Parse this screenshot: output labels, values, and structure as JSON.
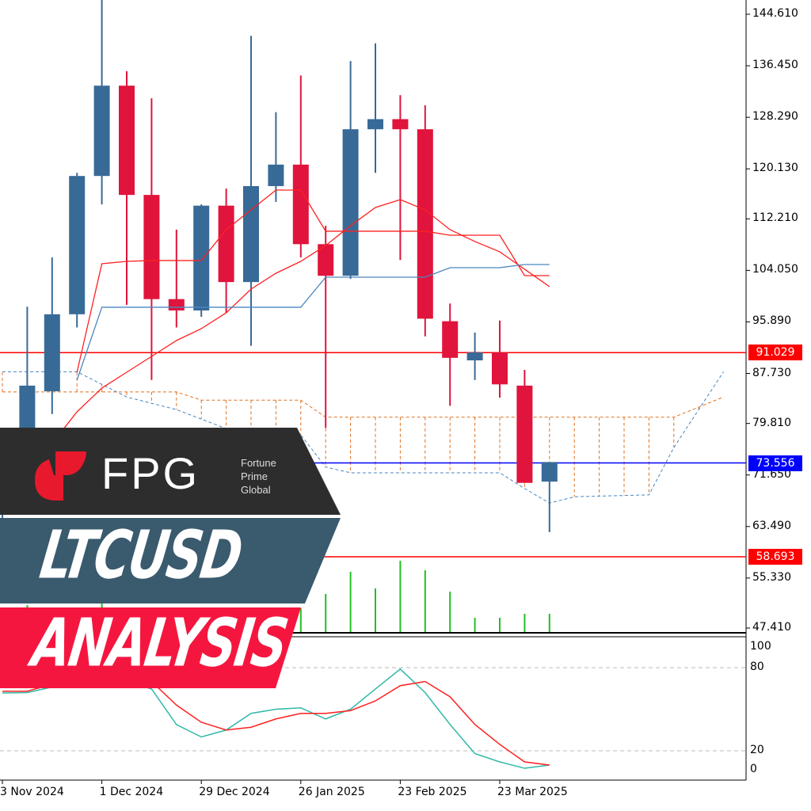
{
  "chart_data": {
    "type": "candlestick",
    "symbol_label": "LTCUSD",
    "y_ticks": [
      "144.610",
      "136.450",
      "128.290",
      "120.130",
      "112.210",
      "104.050",
      "95.890",
      "87.730",
      "79.810",
      "71.650",
      "63.490",
      "55.330",
      "47.410"
    ],
    "ylim": [
      47.41,
      144.61
    ],
    "x_ticks": [
      {
        "index": 0,
        "label": "3 Nov 2024"
      },
      {
        "index": 4,
        "label": "1 Dec 2024"
      },
      {
        "index": 8,
        "label": "29 Dec 2024"
      },
      {
        "index": 12,
        "label": "26 Jan 2025"
      },
      {
        "index": 16,
        "label": "23 Feb 2025"
      },
      {
        "index": 20,
        "label": "23 Mar 2025"
      }
    ],
    "candles": [
      {
        "o": 66.0,
        "h": 76.0,
        "l": 62.0,
        "c": 75.6
      },
      {
        "o": 75.6,
        "h": 98.3,
        "l": 71.6,
        "c": 85.8
      },
      {
        "o": 84.9,
        "h": 106.1,
        "l": 81.3,
        "c": 97.1
      },
      {
        "o": 97.1,
        "h": 119.5,
        "l": 95.0,
        "c": 119.0
      },
      {
        "o": 119.0,
        "h": 147.0,
        "l": 114.5,
        "c": 133.3
      },
      {
        "o": 133.3,
        "h": 135.6,
        "l": 98.6,
        "c": 116.0
      },
      {
        "o": 116.0,
        "h": 131.3,
        "l": 86.7,
        "c": 99.5
      },
      {
        "o": 99.5,
        "h": 110.5,
        "l": 95.0,
        "c": 97.7
      },
      {
        "o": 97.7,
        "h": 114.5,
        "l": 96.7,
        "c": 114.3
      },
      {
        "o": 114.3,
        "h": 117.0,
        "l": 97.3,
        "c": 102.2
      },
      {
        "o": 102.2,
        "h": 141.2,
        "l": 92.1,
        "c": 117.4
      },
      {
        "o": 117.4,
        "h": 129.1,
        "l": 114.9,
        "c": 120.8
      },
      {
        "o": 120.8,
        "h": 134.9,
        "l": 106.1,
        "c": 108.2
      },
      {
        "o": 108.2,
        "h": 111.1,
        "l": 79.1,
        "c": 103.2
      },
      {
        "o": 103.2,
        "h": 137.2,
        "l": 102.7,
        "c": 126.4
      },
      {
        "o": 126.4,
        "h": 140.0,
        "l": 119.5,
        "c": 128.0
      },
      {
        "o": 128.0,
        "h": 131.8,
        "l": 105.7,
        "c": 126.4
      },
      {
        "o": 126.4,
        "h": 130.2,
        "l": 93.6,
        "c": 96.4
      },
      {
        "o": 96.0,
        "h": 98.8,
        "l": 82.6,
        "c": 90.2
      },
      {
        "o": 89.8,
        "h": 94.2,
        "l": 86.7,
        "c": 91.05
      },
      {
        "o": 91.05,
        "h": 96.1,
        "l": 83.9,
        "c": 86.0
      },
      {
        "o": 85.8,
        "h": 88.3,
        "l": 70.4,
        "c": 70.4
      },
      {
        "o": 70.6,
        "h": 73.7,
        "l": 62.6,
        "c": 73.7
      }
    ],
    "lines": [
      {
        "color": "#ff2020",
        "values": [
          69.11,
          72.25,
          76.63,
          81.65,
          85.41,
          87.92,
          90.43,
          92.94,
          94.82,
          97.33,
          101.09,
          103.6,
          105.48,
          107.99,
          111.13,
          114.01,
          115.26,
          113.63,
          110.5,
          108.62,
          106.99,
          104.23,
          101.47
        ]
      },
      {
        "color": "#ff2020",
        "values": [
          null,
          null,
          null,
          87.92,
          105.11,
          105.48,
          105.61,
          105.61,
          105.61,
          110.5,
          113.63,
          116.77,
          116.77,
          110.25,
          110.25,
          110.25,
          110.25,
          110.25,
          109.62,
          109.62,
          109.62,
          103.22,
          103.22
        ]
      },
      {
        "color": "#4a86c0",
        "values": [
          null,
          null,
          null,
          86.67,
          98.21,
          98.21,
          98.21,
          98.21,
          98.21,
          98.21,
          98.21,
          98.21,
          98.21,
          102.97,
          102.97,
          102.97,
          102.97,
          102.97,
          104.48,
          104.48,
          104.48,
          104.98,
          104.98
        ]
      }
    ],
    "cloud": {
      "span_a_color": "#e07020",
      "span_b_color": "#4a86c0",
      "span_a": [
        [
          0,
          84.8
        ],
        [
          7,
          84.8
        ],
        [
          8,
          83.5
        ],
        [
          12,
          83.5
        ],
        [
          13,
          80.8
        ],
        [
          27,
          80.8
        ],
        [
          29,
          84.0
        ]
      ],
      "span_b": [
        [
          0,
          88
        ],
        [
          3,
          88
        ],
        [
          5,
          84
        ],
        [
          7,
          82
        ],
        [
          9,
          79
        ],
        [
          12,
          78
        ],
        [
          13,
          72.9
        ],
        [
          14,
          72.0
        ],
        [
          20,
          72.0
        ],
        [
          21,
          69.5
        ],
        [
          22,
          67.2
        ],
        [
          23,
          68.2
        ],
        [
          26,
          68.5
        ],
        [
          27,
          76
        ],
        [
          29,
          88
        ]
      ]
    },
    "hlines": [
      {
        "price": 91.029,
        "label": "91.029",
        "color": "#ff0000"
      },
      {
        "price": 73.556,
        "label": "73.556",
        "color": "#0000ff"
      },
      {
        "price": 58.693,
        "label": "58.693",
        "color": "#ff0000"
      }
    ],
    "volume": {
      "color": "#22c022",
      "values": [
        30,
        34,
        30,
        30,
        53,
        30,
        30,
        30,
        30,
        30,
        30,
        30,
        30,
        48,
        76,
        55,
        90,
        78,
        51,
        18,
        18,
        23,
        23
      ]
    },
    "oscillator": {
      "y_ticks": [
        "100",
        "80",
        "20",
        "0"
      ],
      "levels": [
        80,
        20
      ],
      "ylim": [
        0,
        100
      ],
      "main": {
        "color": "#30b8a8",
        "values": [
          61.7,
          62,
          66,
          71,
          76,
          70,
          64.6,
          38.9,
          30,
          35,
          47,
          50,
          51,
          43,
          50,
          64.6,
          79,
          62,
          39,
          18,
          12,
          7.4,
          9.7
        ]
      },
      "signal": {
        "color": "#ff2020",
        "values": [
          63,
          63,
          68,
          75,
          82,
          76,
          70,
          53,
          40.6,
          35,
          37,
          43,
          47,
          47,
          49,
          56,
          67,
          70,
          59,
          39,
          24.6,
          12,
          9.7
        ]
      }
    }
  },
  "banner": {
    "brand": "FPG",
    "brand_sub": [
      "Fortune",
      "Prime",
      "Global"
    ],
    "title": "LTCUSD",
    "subtitle": "ANALYSIS"
  }
}
